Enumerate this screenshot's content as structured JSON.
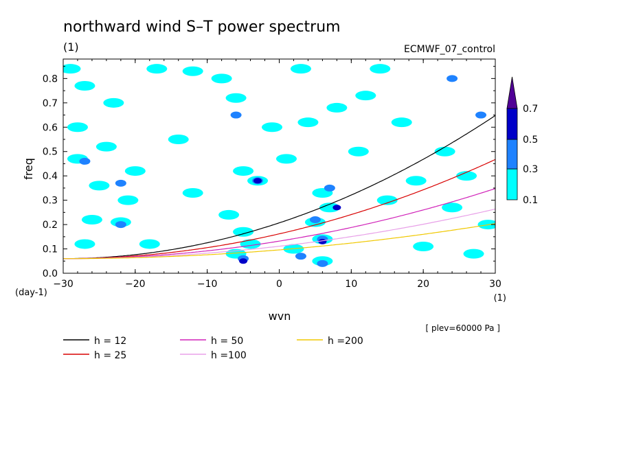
{
  "chart_data": {
    "type": "heatmap",
    "title": "northward wind S–T power spectrum",
    "subtitle": "(1)",
    "source_label": "ECMWF_07_control",
    "xlabel": "wvn",
    "ylabel": "freq",
    "x_unit": "(1)",
    "y_unit": "(day-1)",
    "footnote": "[ plev=60000 Pa ]",
    "xlim": [
      -30,
      30
    ],
    "ylim": [
      0,
      0.88
    ],
    "x_ticks": [
      -30,
      -20,
      -10,
      0,
      10,
      20,
      30
    ],
    "x_tick_labels": [
      "−30",
      "−20",
      "−10",
      "0",
      "10",
      "20",
      "30"
    ],
    "y_ticks": [
      0.0,
      0.1,
      0.2,
      0.3,
      0.4,
      0.5,
      0.6,
      0.7,
      0.8
    ],
    "y_tick_labels": [
      "0.0",
      "0.1",
      "0.2",
      "0.3",
      "0.4",
      "0.5",
      "0.6",
      "0.7",
      "0.8"
    ],
    "colorbar": {
      "levels": [
        0.1,
        0.3,
        0.5,
        0.7
      ],
      "level_labels": [
        "0.1",
        "0.3",
        "0.5",
        "0.7"
      ],
      "colors": [
        "#00ffff",
        "#1e82ff",
        "#0000c8",
        "#500096"
      ]
    },
    "contour_blobs": [
      {
        "x": -27,
        "y": 0.77,
        "lvl": 0
      },
      {
        "x": -23,
        "y": 0.7,
        "lvl": 0
      },
      {
        "x": -28,
        "y": 0.6,
        "lvl": 0
      },
      {
        "x": -24,
        "y": 0.52,
        "lvl": 0
      },
      {
        "x": -28,
        "y": 0.47,
        "lvl": 0
      },
      {
        "x": -27,
        "y": 0.46,
        "lvl": 1
      },
      {
        "x": -20,
        "y": 0.42,
        "lvl": 0
      },
      {
        "x": -25,
        "y": 0.36,
        "lvl": 0
      },
      {
        "x": -22,
        "y": 0.37,
        "lvl": 1
      },
      {
        "x": -21,
        "y": 0.3,
        "lvl": 0
      },
      {
        "x": -26,
        "y": 0.22,
        "lvl": 0
      },
      {
        "x": -22,
        "y": 0.21,
        "lvl": 0
      },
      {
        "x": -22,
        "y": 0.2,
        "lvl": 1
      },
      {
        "x": -27,
        "y": 0.12,
        "lvl": 0
      },
      {
        "x": -18,
        "y": 0.12,
        "lvl": 0
      },
      {
        "x": -14,
        "y": 0.55,
        "lvl": 0
      },
      {
        "x": -12,
        "y": 0.33,
        "lvl": 0
      },
      {
        "x": -17,
        "y": 0.84,
        "lvl": 0
      },
      {
        "x": -12,
        "y": 0.83,
        "lvl": 0
      },
      {
        "x": -8,
        "y": 0.8,
        "lvl": 0
      },
      {
        "x": -6,
        "y": 0.72,
        "lvl": 0
      },
      {
        "x": -6,
        "y": 0.65,
        "lvl": 1
      },
      {
        "x": -5,
        "y": 0.42,
        "lvl": 0
      },
      {
        "x": -3,
        "y": 0.38,
        "lvl": 0
      },
      {
        "x": -3,
        "y": 0.38,
        "lvl": 1
      },
      {
        "x": -3,
        "y": 0.38,
        "lvl": 2
      },
      {
        "x": -7,
        "y": 0.24,
        "lvl": 0
      },
      {
        "x": -5,
        "y": 0.17,
        "lvl": 0
      },
      {
        "x": -4,
        "y": 0.12,
        "lvl": 0
      },
      {
        "x": -6,
        "y": 0.08,
        "lvl": 0
      },
      {
        "x": -5,
        "y": 0.06,
        "lvl": 1
      },
      {
        "x": -5,
        "y": 0.05,
        "lvl": 2
      },
      {
        "x": -1,
        "y": 0.6,
        "lvl": 0
      },
      {
        "x": 3,
        "y": 0.84,
        "lvl": 0
      },
      {
        "x": 1,
        "y": 0.47,
        "lvl": 0
      },
      {
        "x": 4,
        "y": 0.62,
        "lvl": 0
      },
      {
        "x": 2,
        "y": 0.1,
        "lvl": 0
      },
      {
        "x": 3,
        "y": 0.07,
        "lvl": 1
      },
      {
        "x": 6,
        "y": 0.33,
        "lvl": 0
      },
      {
        "x": 7,
        "y": 0.35,
        "lvl": 1
      },
      {
        "x": 7,
        "y": 0.27,
        "lvl": 0
      },
      {
        "x": 8,
        "y": 0.27,
        "lvl": 2
      },
      {
        "x": 5,
        "y": 0.21,
        "lvl": 0
      },
      {
        "x": 5,
        "y": 0.22,
        "lvl": 1
      },
      {
        "x": 6,
        "y": 0.14,
        "lvl": 0
      },
      {
        "x": 6,
        "y": 0.14,
        "lvl": 1
      },
      {
        "x": 6,
        "y": 0.13,
        "lvl": 2
      },
      {
        "x": 6,
        "y": 0.05,
        "lvl": 0
      },
      {
        "x": 6,
        "y": 0.04,
        "lvl": 1
      },
      {
        "x": 8,
        "y": 0.68,
        "lvl": 0
      },
      {
        "x": 11,
        "y": 0.5,
        "lvl": 0
      },
      {
        "x": 12,
        "y": 0.73,
        "lvl": 0
      },
      {
        "x": 15,
        "y": 0.3,
        "lvl": 0
      },
      {
        "x": 17,
        "y": 0.62,
        "lvl": 0
      },
      {
        "x": 19,
        "y": 0.38,
        "lvl": 0
      },
      {
        "x": 20,
        "y": 0.11,
        "lvl": 0
      },
      {
        "x": 23,
        "y": 0.5,
        "lvl": 0
      },
      {
        "x": 24,
        "y": 0.27,
        "lvl": 0
      },
      {
        "x": 24,
        "y": 0.8,
        "lvl": 1
      },
      {
        "x": 26,
        "y": 0.4,
        "lvl": 0
      },
      {
        "x": 27,
        "y": 0.08,
        "lvl": 0
      },
      {
        "x": 28,
        "y": 0.65,
        "lvl": 1
      },
      {
        "x": 29,
        "y": 0.2,
        "lvl": 0
      },
      {
        "x": 14,
        "y": 0.84,
        "lvl": 0
      },
      {
        "x": -29,
        "y": 0.84,
        "lvl": 0
      }
    ],
    "series": [
      {
        "name": "h = 12",
        "h": 12,
        "color": "#000000"
      },
      {
        "name": "h = 25",
        "h": 25,
        "color": "#d80000"
      },
      {
        "name": "h = 50",
        "h": 50,
        "color": "#d020b8"
      },
      {
        "name": "h =100",
        "h": 100,
        "color": "#e8a0e8"
      },
      {
        "name": "h =200",
        "h": 200,
        "color": "#f0c800"
      }
    ],
    "curve_params": {
      "a": 0.06,
      "b": 4e-05
    }
  }
}
